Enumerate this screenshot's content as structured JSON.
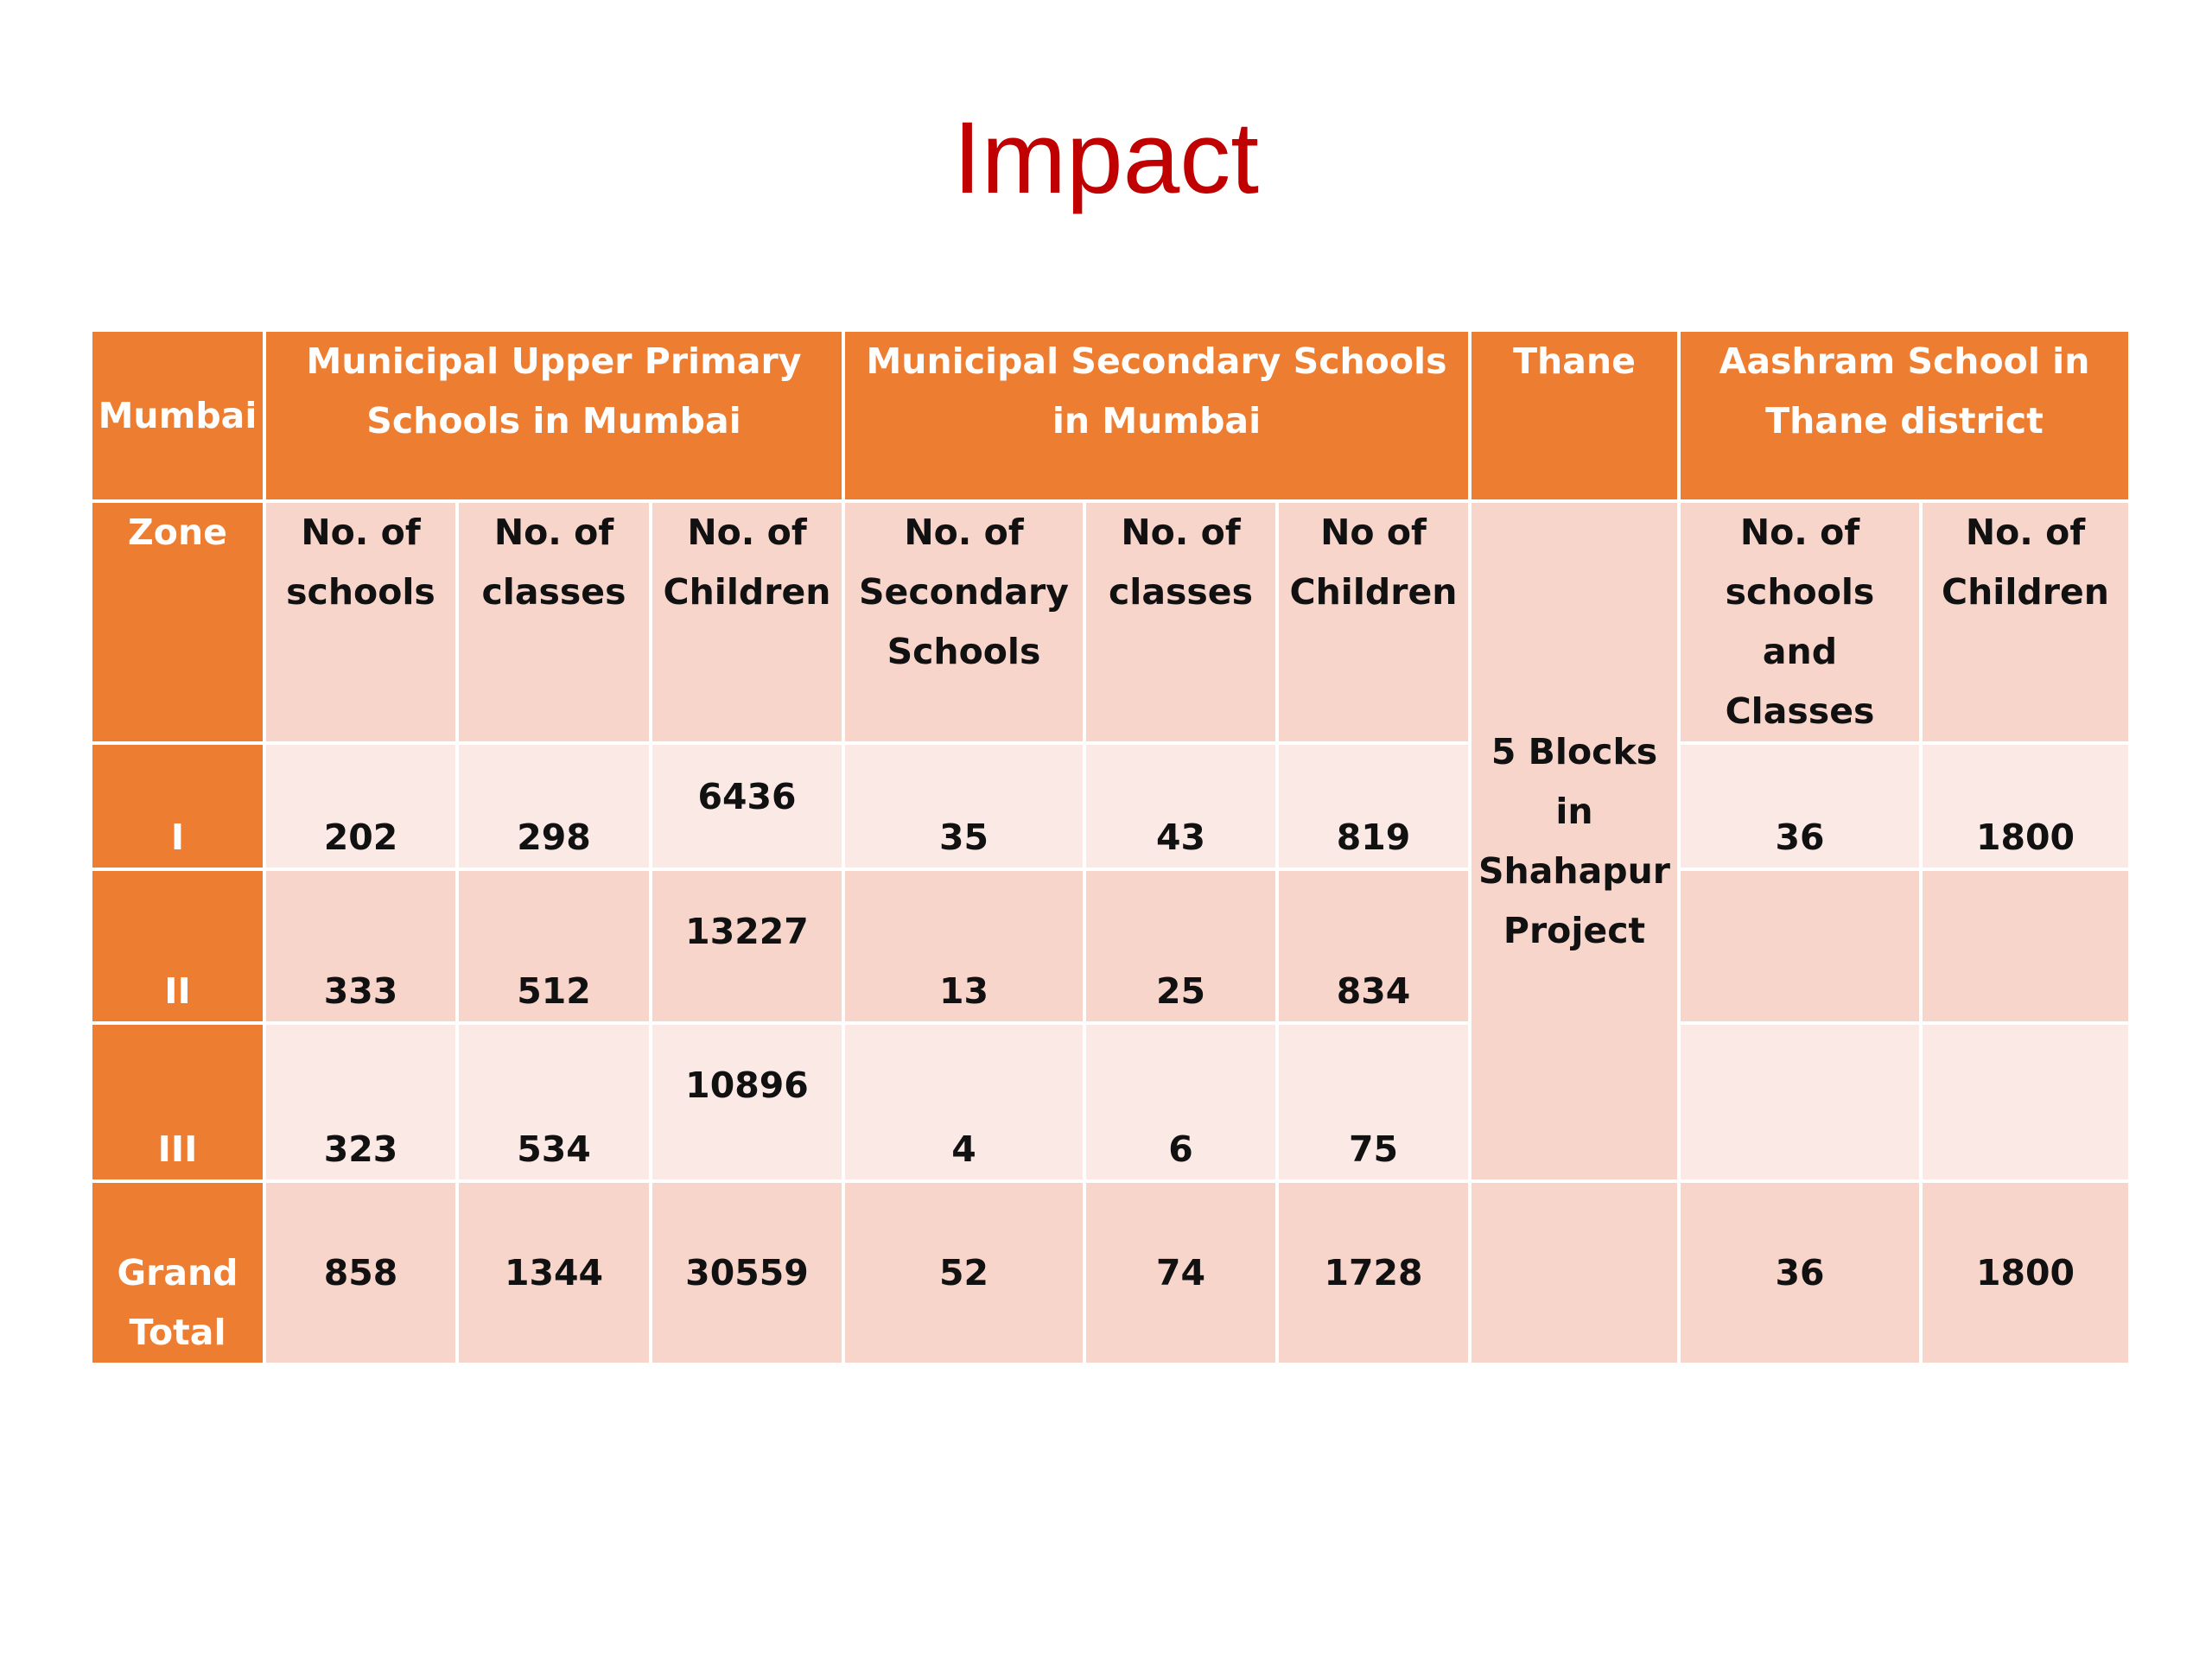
{
  "title": "Impact",
  "table": {
    "group_headers": {
      "mumbai": "Mumbai",
      "upper_primary": "Municipal Upper Primary Schools in  Mumbai",
      "secondary": "Municipal Secondary  Schools in Mumbai",
      "thane": "Thane",
      "aashram": "Aashram School in Thane district"
    },
    "column_headers": {
      "zone": "Zone",
      "up_schools": "No. of schools",
      "up_classes": "No. of classes",
      "up_children": "No. of Children",
      "sec_schools": "No. of Secondary Schools",
      "sec_classes": "No. of classes",
      "sec_children": "No of Children",
      "ash_schools": "No. of schools and Classes",
      "ash_children": "No. of Children"
    },
    "thane_note": "5 Blocks in Shahapur Project",
    "rows": [
      {
        "zone": "I",
        "up_schools": "202",
        "up_classes": "298",
        "up_children": "6436",
        "sec_schools": "35",
        "sec_classes": "43",
        "sec_children": "819",
        "ash_schools": "36",
        "ash_children": "1800"
      },
      {
        "zone": "II",
        "up_schools": "333",
        "up_classes": "512",
        "up_children": "13227",
        "sec_schools": "13",
        "sec_classes": "25",
        "sec_children": "834",
        "ash_schools": "",
        "ash_children": ""
      },
      {
        "zone": "III",
        "up_schools": "323",
        "up_classes": "534",
        "up_children": "10896",
        "sec_schools": "4",
        "sec_classes": "6",
        "sec_children": "75",
        "ash_schools": "",
        "ash_children": ""
      }
    ],
    "total": {
      "label": "Grand Total",
      "up_schools": "858",
      "up_classes": "1344",
      "up_children": "30559",
      "sec_schools": "52",
      "sec_classes": "74",
      "sec_children": "1728",
      "thane": "",
      "ash_schools": "36",
      "ash_children": "1800"
    },
    "colors": {
      "header_orange": "#ed7d31",
      "cell_dark": "#f8d5cb",
      "cell_light": "#fbe9e6",
      "title_red": "#c00000"
    }
  }
}
